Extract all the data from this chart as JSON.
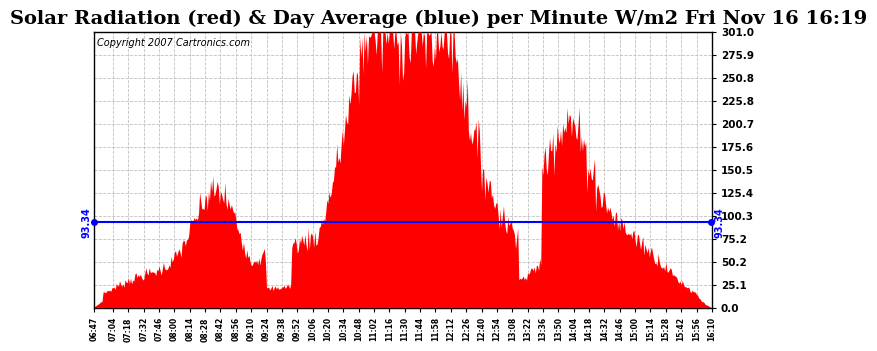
{
  "title": "Solar Radiation (red) & Day Average (blue) per Minute W/m2 Fri Nov 16 16:19",
  "copyright": "Copyright 2007 Cartronics.com",
  "avg_value": 93.34,
  "y_max": 301.0,
  "y_min": 0.0,
  "y_ticks": [
    0.0,
    25.1,
    50.2,
    75.2,
    100.3,
    125.4,
    150.5,
    175.6,
    200.7,
    225.8,
    250.8,
    275.9,
    301.0
  ],
  "bar_color": "#FF0000",
  "avg_line_color": "#0000FF",
  "background_color": "#FFFFFF",
  "grid_color": "#C0C0C0",
  "title_fontsize": 14,
  "copyright_fontsize": 7,
  "total_minutes": 563,
  "tick_labels": [
    "06:47",
    "07:04",
    "07:18",
    "07:32",
    "07:46",
    "08:00",
    "08:14",
    "08:28",
    "08:42",
    "08:56",
    "09:10",
    "09:24",
    "09:38",
    "09:52",
    "10:06",
    "10:20",
    "10:34",
    "10:48",
    "11:02",
    "11:16",
    "11:30",
    "11:44",
    "11:58",
    "12:12",
    "12:26",
    "12:40",
    "12:54",
    "13:08",
    "13:22",
    "13:36",
    "13:50",
    "14:04",
    "14:18",
    "14:32",
    "14:46",
    "15:00",
    "15:14",
    "15:28",
    "15:42",
    "15:56",
    "16:10"
  ]
}
